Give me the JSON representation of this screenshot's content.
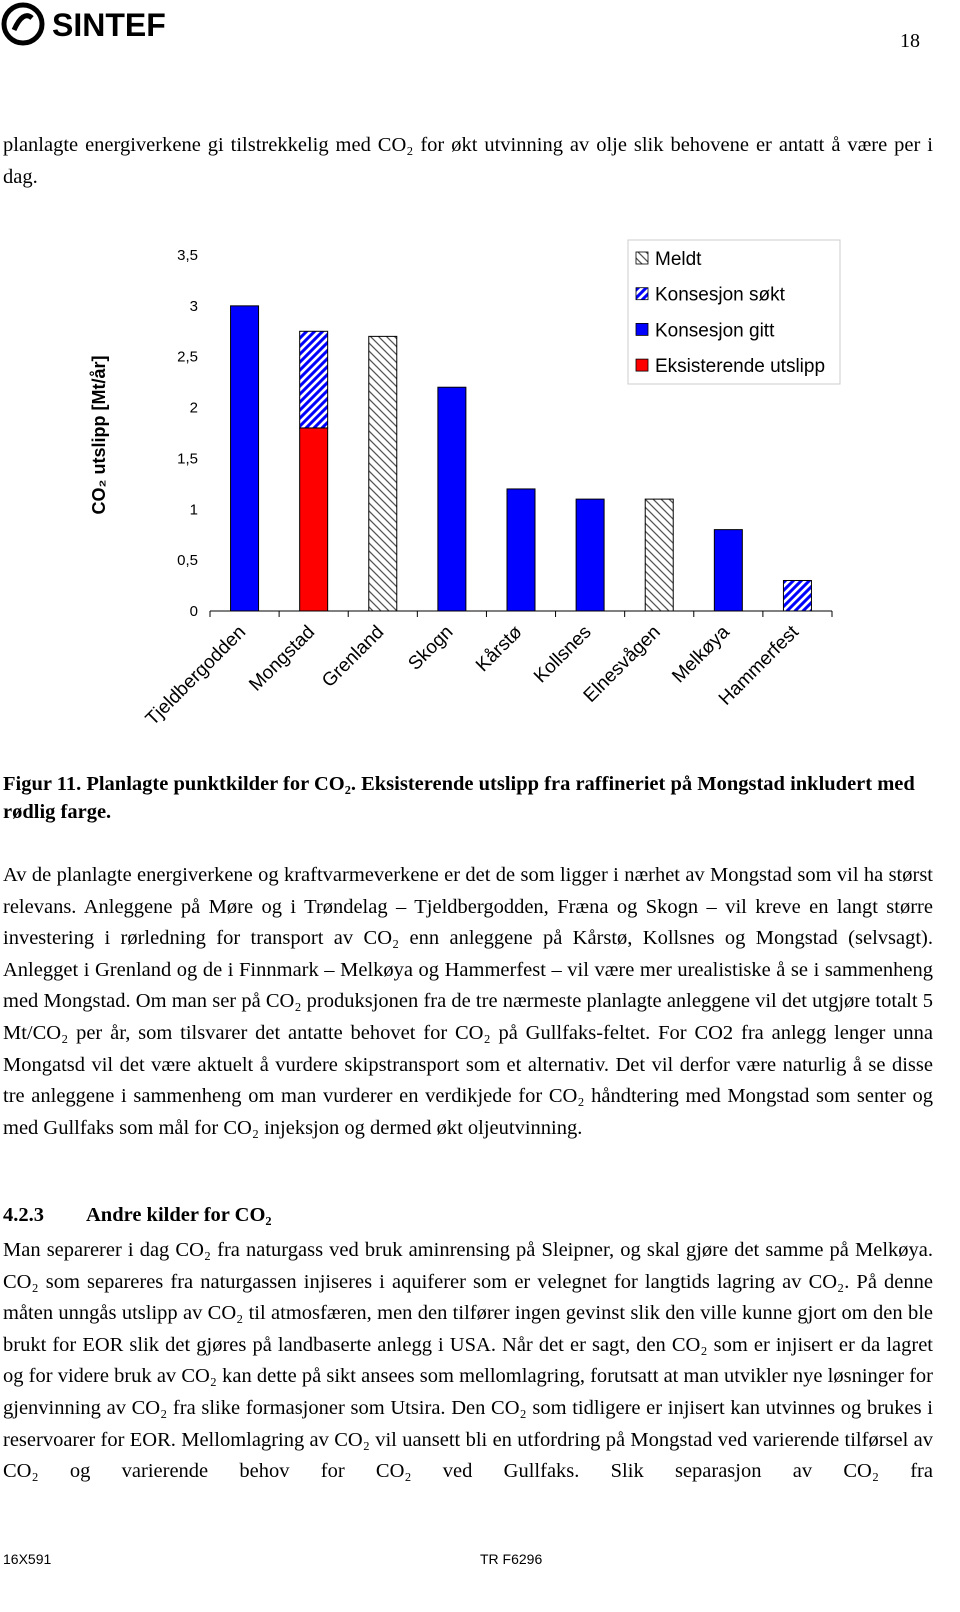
{
  "header": {
    "logo": "SINTEF",
    "page_number": "18"
  },
  "paragraphs": [
    "planlagte energiverkene gi tilstrekkelig med CO₂ for økt utvinning av olje slik behovene er antatt å være per i dag.",
    "Av de planlagte energiverkene og kraftvarmeverkene er det de som ligger i nærhet av Mongstad som vil ha størst relevans. Anleggene på Møre og i Trøndelag – Tjeldbergodden, Fræna og Skogn – vil kreve en langt større investering i rørledning for transport av CO₂ enn anleggene på Kårstø, Kollsnes og Mongstad (selvsagt). Anlegget i Grenland og de i Finnmark – Melkøya og Hammerfest – vil være mer urealistiske å se i sammenheng med Mongstad. Om man ser på CO₂ produksjonen fra de tre nærmeste planlagte anleggene vil det utgjøre totalt 5 Mt/CO₂ per år, som tilsvarer det antatte behovet for CO₂ på Gullfaks-feltet. For CO2 fra anlegg lenger unna Mongatsd vil det være aktuelt å vurdere skipstransport som et alternativ. Det vil derfor være naturlig å se disse tre anleggene i sammenheng om man vurderer en verdikjede for CO₂ håndtering med Mongstad som senter og med Gullfaks som mål for CO₂ injeksjon og dermed økt oljeutvinning.",
    "Man separerer i dag CO₂ fra naturgass ved bruk aminrensing på Sleipner, og skal gjøre det samme på Melkøya. CO₂ som separeres fra naturgassen injiseres i aquiferer som er velegnet for langtids lagring av CO₂. På denne måten unngås utslipp av CO₂ til atmosfæren, men den tilfører ingen gevinst slik den ville kunne gjort om den ble brukt for EOR slik det gjøres på landbaserte anlegg i USA. Når det er sagt, den CO₂ som er injisert er da lagret og for videre bruk av CO₂ kan dette på sikt ansees som mellomlagring, forutsatt at man utvikler nye løsninger for gjenvinning av CO₂ fra slike formasjoner som Utsira. Den CO₂ som tidligere er injisert kan utvinnes og brukes i reservoarer for EOR. Mellomlagring av CO₂ vil uansett bli en utfordring på Mongstad ved varierende tilførsel av CO₂ og varierende behov for CO₂ ved Gullfaks. Slik separasjon av CO₂ fra"
  ],
  "caption": "Figur 11. Planlagte punktkilder for CO₂. Eksisterende utslipp fra raffineriet på Mongstad inkludert med rødlig farge.",
  "heading": {
    "number": "4.2.3",
    "title": "Andre kilder for CO₂"
  },
  "footer": {
    "left": "16X591",
    "right": "TR F6296"
  },
  "chart_data": {
    "type": "stacked-bar",
    "y_label": "CO₂ utslipp [Mt/år]",
    "categories": [
      "Tjeldbergodden",
      "Mongstad",
      "Grenland",
      "Skogn",
      "Kårstø",
      "Kollsnes",
      "Elnesvågen",
      "Melkøya",
      "Hammerfest"
    ],
    "series": [
      {
        "name": "Eksisterende utslipp",
        "color": "#ff0000",
        "hatch": "none",
        "values": [
          null,
          1.8,
          null,
          null,
          null,
          null,
          null,
          null,
          null
        ]
      },
      {
        "name": "Konsesjon gitt",
        "color": "#0000ff",
        "hatch": "none",
        "values": [
          3,
          null,
          null,
          2.2,
          1.2,
          1.1,
          null,
          0.8,
          null
        ]
      },
      {
        "name": "Konsesjon søkt",
        "color": "#0000ff",
        "hatch": "up",
        "values": [
          null,
          0.95,
          null,
          null,
          null,
          null,
          null,
          null,
          0.3
        ]
      },
      {
        "name": "Meldt",
        "color": "#555555",
        "hatch": "down",
        "values": [
          null,
          null,
          2.7,
          null,
          null,
          null,
          1.1,
          null,
          null
        ]
      }
    ],
    "legend_order": [
      3,
      2,
      1,
      0
    ],
    "legend": "upper right",
    "grid": false,
    "ylim": [
      0,
      3.5
    ],
    "yticks": [
      0,
      {
        "value": 0.5,
        "label": "0,5"
      },
      1,
      {
        "value": 1.5,
        "label": "1,5"
      },
      2,
      {
        "value": 2.5,
        "label": "2,5"
      },
      3,
      {
        "value": 3.5,
        "label": "3,5"
      }
    ]
  }
}
